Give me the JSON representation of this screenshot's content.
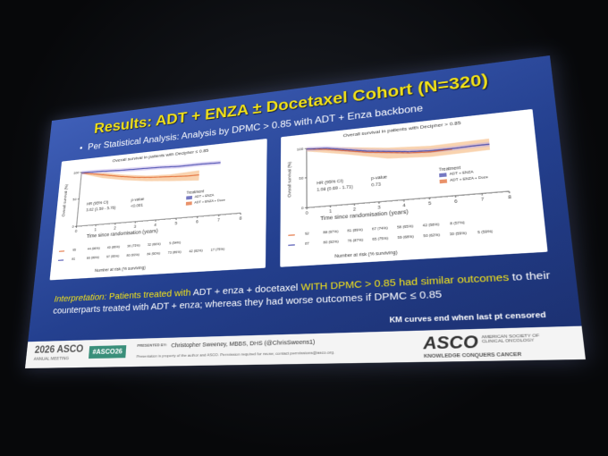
{
  "title": "Results: ADT + ENZA ± Docetaxel Cohort (N=320)",
  "bullet": "Per Statistical Analysis: Analysis by DPMC > 0.85 with ADT + Enza backbone",
  "panels": [
    {
      "title": "Overall survival in patients with Decipher ≤ 0.85",
      "y_label": "Overall survival (%)",
      "x_label": "Time since randomisation (years)",
      "x_ticks": [
        0,
        1,
        2,
        3,
        4,
        5,
        6,
        7,
        8
      ],
      "y_ticks": [
        0,
        50,
        100
      ],
      "hr_label": "HR (95% CI)",
      "hr_value": "3.02 (1.59 - 5.76)",
      "p_label": "p-value",
      "p_value": "<0.001",
      "legend_title": "Treatment",
      "legend": [
        "ADT + ENZA",
        "ADT + ENZA + Doce"
      ],
      "risk_rows": [
        {
          "n": 95,
          "values": [
            "44 (96%)",
            "40 (86%)",
            "36 (73%)",
            "32 (66%)",
            "5 (54%)"
          ]
        },
        {
          "n": 81,
          "values": [
            "80 (99%)",
            "97 (95%)",
            "80 (93%)",
            "84 (90%)",
            "73 (86%)",
            "42 (82%)",
            "17 (75%)"
          ]
        }
      ],
      "risk_label": "Number at risk (% surviving)"
    },
    {
      "title": "Overall survival in patients with Decipher > 0.85",
      "y_label": "Overall survival (%)",
      "x_label": "Time since randomisation (years)",
      "x_ticks": [
        0,
        1,
        2,
        3,
        4,
        5,
        6,
        7,
        8
      ],
      "y_ticks": [
        0,
        50,
        100
      ],
      "hr_label": "HR (95% CI)",
      "hr_value": "1.08 (0.69 - 1.71)",
      "p_label": "p-value",
      "p_value": "0.73",
      "legend_title": "Treatment",
      "legend": [
        "ADT + ENZA",
        "ADT + ENZA + Doce"
      ],
      "risk_rows": [
        {
          "n": 92,
          "values": [
            "88 (97%)",
            "81 (89%)",
            "67 (74%)",
            "58 (65%)",
            "42 (58%)",
            "8 (57%)"
          ]
        },
        {
          "n": 87,
          "values": [
            "80 (92%)",
            "76 (87%)",
            "65 (75%)",
            "59 (68%)",
            "50 (62%)",
            "30 (59%)",
            "5 (59%)"
          ]
        }
      ],
      "risk_label": "Number at risk (% surviving)"
    }
  ],
  "interpretation": [
    "Interpretation:",
    "Patients treated with",
    "ADT + enza + docetaxel",
    "WITH DPMC > 0.85 had similar outcomes",
    "to their counterparts treated with ADT + enza; whereas they had worse outcomes if DPMC ≤ 0.85"
  ],
  "note": "KM curves end when last pt censored",
  "footer": {
    "meeting_year": "2026 ASCO",
    "meeting": "ANNUAL MEETING",
    "hashtag": "#ASCO26",
    "presented_by": "PRESENTED BY:",
    "presenter": "Christopher Sweeney, MBBS, DHS (@ChrisSweens1)",
    "notice": "Presentation is property of the author and ASCO. Permission required for reuse; contact permissions@asco.org.",
    "logo": "ASCO",
    "society": "AMERICAN SOCIETY OF CLINICAL ONCOLOGY",
    "motto": "KNOWLEDGE CONQUERS CANCER"
  }
}
